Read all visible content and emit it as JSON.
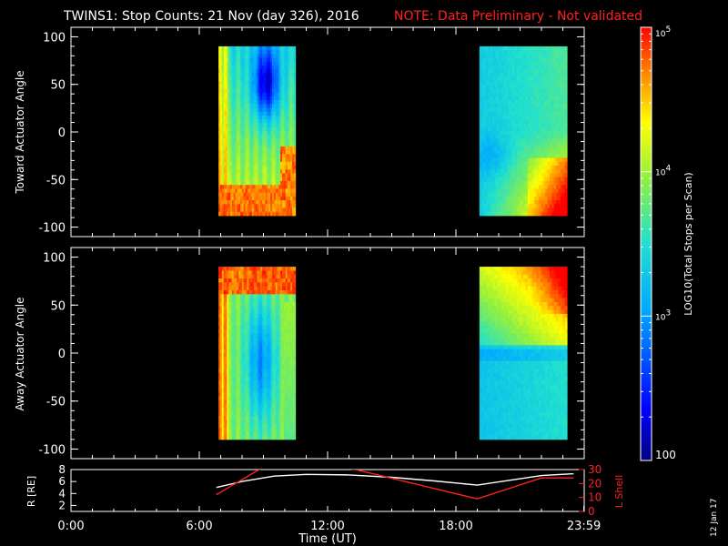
{
  "title": {
    "main": "TWINS1: Stop Counts: 21 Nov (day 326), 2016",
    "note": "NOTE: Data Preliminary - Not validated",
    "note_color": "#ff2020"
  },
  "footer_date": "12 Jan 17",
  "chart_data": [
    {
      "type": "heatmap",
      "name": "toward",
      "ylabel": "Toward Actuator Angle",
      "ylim": [
        -110,
        110
      ],
      "yticks": [
        100,
        50,
        0,
        -50,
        -100
      ],
      "xlim": [
        0,
        24
      ],
      "blocks": [
        {
          "t_start": 6.9,
          "t_end": 10.5,
          "angle_min": -88,
          "angle_max": 90
        },
        {
          "t_start": 19.1,
          "t_end": 23.2,
          "angle_min": -88,
          "angle_max": 90
        }
      ]
    },
    {
      "type": "heatmap",
      "name": "away",
      "ylabel": "Away Actuator Angle",
      "ylim": [
        -110,
        110
      ],
      "yticks": [
        100,
        50,
        0,
        -50,
        -100
      ],
      "xlim": [
        0,
        24
      ],
      "blocks": [
        {
          "t_start": 6.9,
          "t_end": 10.5,
          "angle_min": -90,
          "angle_max": 90
        },
        {
          "t_start": 19.1,
          "t_end": 23.2,
          "angle_min": -90,
          "angle_max": 90
        }
      ]
    },
    {
      "type": "line",
      "name": "orbit",
      "ylabel_left": "R [RE]",
      "ylabel_right": "L Shell",
      "xlabel": "Time (UT)",
      "xlim": [
        0,
        24
      ],
      "xticks": [
        "0:00",
        "6:00",
        "12:00",
        "18:00",
        "23:59"
      ],
      "ylim_left": [
        1,
        8
      ],
      "yticks_left": [
        "8",
        "6",
        "4",
        "2"
      ],
      "ylim_right": [
        0,
        30
      ],
      "yticks_right": [
        "30",
        "20",
        "10",
        "0"
      ],
      "series": [
        {
          "name": "R [RE]",
          "color": "#ffffff",
          "x": [
            6.8,
            8,
            9.5,
            11,
            13,
            15,
            17,
            19,
            20.5,
            22,
            23.5
          ],
          "y": [
            5.0,
            6.0,
            6.9,
            7.2,
            7.1,
            6.7,
            6.1,
            5.4,
            6.2,
            7.0,
            7.3
          ]
        },
        {
          "name": "L Shell",
          "color": "#ff2020",
          "x": [
            6.8,
            8.8,
            9.8,
            13.3,
            19.0,
            22.0,
            23.5
          ],
          "y": [
            12,
            30,
            36,
            30,
            9,
            24,
            24
          ]
        }
      ]
    }
  ],
  "colorbar": {
    "label": "LOG10(Total Stops per Scan)",
    "range_log10": [
      2,
      5
    ],
    "ticks": [
      {
        "exp": "5",
        "label": "10",
        "log10": 5
      },
      {
        "exp": "4",
        "label": "10",
        "log10": 4
      },
      {
        "exp": "3",
        "label": "10",
        "log10": 3
      },
      {
        "exp": "",
        "label": "100",
        "log10": 2
      }
    ]
  }
}
